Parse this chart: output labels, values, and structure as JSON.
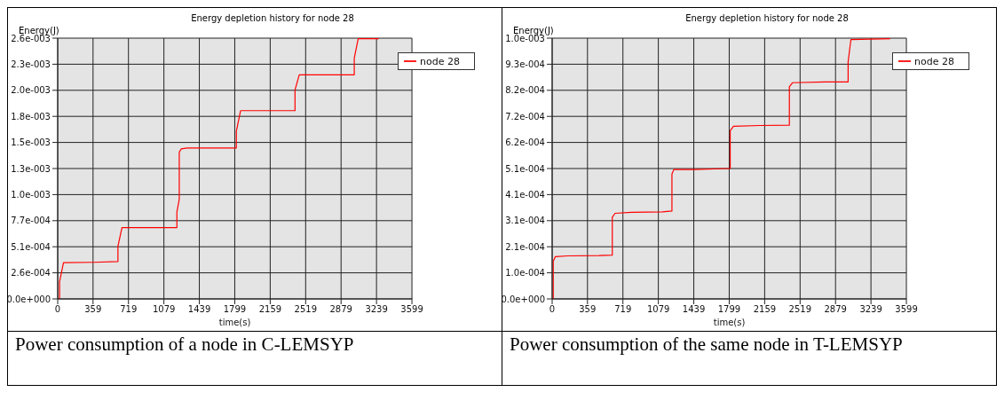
{
  "chart_data": [
    {
      "type": "line",
      "title": "Energy depletion history for node 28",
      "xlabel": "time(s)",
      "ylabel": "Energy(J)",
      "annotations": [
        "Power consumption of a node in C-LEMSYP"
      ],
      "x": [
        0,
        19,
        19,
        59,
        363,
        612,
        612,
        653,
        1211,
        1211,
        1235,
        1235,
        1254,
        1316,
        1815,
        1815,
        1858,
        2411,
        2411,
        2454,
        3013,
        3013,
        3053,
        3263
      ],
      "series": [
        {
          "name": "node 28",
          "color": "#ff0000",
          "values": [
            0,
            0,
            0.000169,
            0.000356,
            0.000359,
            0.000366,
            0.000518,
            0.0007,
            0.0007,
            0.000852,
            0.000979,
            0.00144,
            0.001472,
            0.001482,
            0.001482,
            0.001647,
            0.001848,
            0.001848,
            0.002051,
            0.0022,
            0.0022,
            0.002363,
            0.002554,
            0.002554
          ]
        }
      ],
      "xlim": [
        0,
        3599
      ],
      "xticks": [
        0,
        359,
        719,
        1079,
        1439,
        1799,
        2159,
        2519,
        2879,
        3239,
        3599
      ],
      "ylim": [
        0,
        0.00256
      ],
      "yticks": [
        {
          "value": 0,
          "label": "0.0e+000"
        },
        {
          "value": 0.000256,
          "label": "2.6e-004"
        },
        {
          "value": 0.000512,
          "label": "5.1e-004"
        },
        {
          "value": 0.000768,
          "label": "7.7e-004"
        },
        {
          "value": 0.001024,
          "label": "1.0e-003"
        },
        {
          "value": 0.00128,
          "label": "1.3e-003"
        },
        {
          "value": 0.001536,
          "label": "1.5e-003"
        },
        {
          "value": 0.001792,
          "label": "1.8e-003"
        },
        {
          "value": 0.002048,
          "label": "2.0e-003"
        },
        {
          "value": 0.002304,
          "label": "2.3e-003"
        },
        {
          "value": 0.00256,
          "label": "2.6e-003"
        }
      ],
      "grid": true,
      "legend": "top right",
      "marker": "none",
      "line_style": "solid"
    },
    {
      "type": "line",
      "title": "Energy depletion history for node 28",
      "xlabel": "time(s)",
      "ylabel": "Energy(J)",
      "annotations": [
        "Power consumption of the same node in T-LEMSYP"
      ],
      "x": [
        0,
        11,
        11,
        33,
        157,
        474,
        611,
        611,
        639,
        804,
        1121,
        1217,
        1217,
        1236,
        1446,
        1776,
        1809,
        1809,
        1842,
        2112,
        2410,
        2410,
        2443,
        2773,
        3007,
        3007,
        3035,
        3434
      ],
      "series": [
        {
          "name": "node 28",
          "color": "#ff0000",
          "values": [
            0,
            0,
            0.000149,
            0.000167,
            0.00017,
            0.000171,
            0.000173,
            0.000323,
            0.000338,
            0.000342,
            0.000344,
            0.000347,
            0.000493,
            0.000511,
            0.000511,
            0.000515,
            0.000515,
            0.000664,
            0.000682,
            0.000685,
            0.000686,
            0.000838,
            0.000854,
            0.000857,
            0.000857,
            0.000936,
            0.001024,
            0.001028
          ]
        }
      ],
      "xlim": [
        0,
        3599
      ],
      "xticks": [
        0,
        359,
        719,
        1079,
        1439,
        1799,
        2159,
        2519,
        2879,
        3239,
        3599
      ],
      "ylim": [
        0,
        0.00103
      ],
      "yticks": [
        {
          "value": 0,
          "label": "0.0e+000"
        },
        {
          "value": 0.000103,
          "label": "1.0e-004"
        },
        {
          "value": 0.000206,
          "label": "2.1e-004"
        },
        {
          "value": 0.000309,
          "label": "3.1e-004"
        },
        {
          "value": 0.000412,
          "label": "4.1e-004"
        },
        {
          "value": 0.000515,
          "label": "5.1e-004"
        },
        {
          "value": 0.000618,
          "label": "6.2e-004"
        },
        {
          "value": 0.000721,
          "label": "7.2e-004"
        },
        {
          "value": 0.000824,
          "label": "8.2e-004"
        },
        {
          "value": 0.000927,
          "label": "9.3e-004"
        },
        {
          "value": 0.00103,
          "label": "1.0e-003"
        }
      ],
      "grid": true,
      "legend": "top right",
      "marker": "none",
      "line_style": "solid"
    }
  ]
}
